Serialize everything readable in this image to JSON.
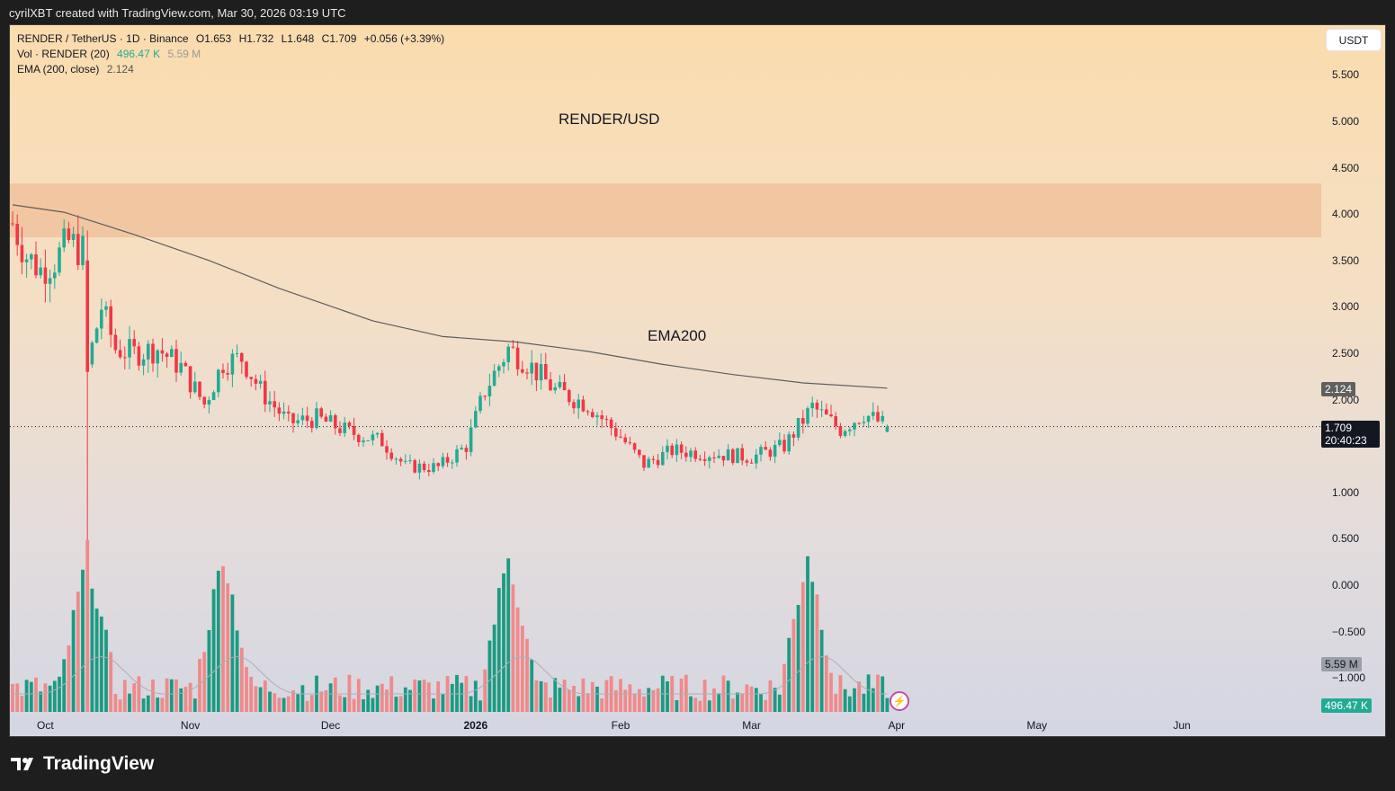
{
  "header": {
    "credit": "cyrilXBT created with TradingView.com, Mar 30, 2026 03:19 UTC"
  },
  "legend": {
    "symbol": "RENDER / TetherUS · 1D · Binance",
    "open": "O1.653",
    "high": "H1.732",
    "low": "L1.648",
    "close": "C1.709",
    "change": "+0.056 (+3.39%)",
    "vol_label": "Vol · RENDER (20)",
    "vol_value": "496.47 K",
    "vol_ma": "5.59 M",
    "ema_label": "EMA (200, close)",
    "ema_value": "2.124"
  },
  "annotations": {
    "pair": "RENDER/USD",
    "ema": "EMA200"
  },
  "currency": "USDT",
  "price_axis": [
    "5.500",
    "5.000",
    "4.500",
    "4.000",
    "3.500",
    "3.000",
    "2.500",
    "2.000",
    "1.000",
    "0.500",
    "0.000",
    "−0.500",
    "−1.000"
  ],
  "badges": {
    "ema": "2.124",
    "price": "1.709",
    "countdown": "20:40:23",
    "vol_ma": "5.59 M",
    "vol": "496.47 K"
  },
  "time_axis": [
    {
      "label": "Oct",
      "bold": false
    },
    {
      "label": "Nov",
      "bold": false
    },
    {
      "label": "Dec",
      "bold": false
    },
    {
      "label": "2026",
      "bold": true
    },
    {
      "label": "Feb",
      "bold": false
    },
    {
      "label": "Mar",
      "bold": false
    },
    {
      "label": "Apr",
      "bold": false
    },
    {
      "label": "May",
      "bold": false
    },
    {
      "label": "Jun",
      "bold": false
    }
  ],
  "footer": {
    "brand": "TradingView"
  },
  "colors": {
    "up": "#22ab94",
    "down": "#f23645",
    "up_vol": "#1a9b82",
    "down_vol": "#f08a8a",
    "zone": "#f0c29c",
    "ema": "#5d5d5d"
  },
  "chart_data": {
    "type": "candlestick",
    "symbol": "RENDER / TetherUS",
    "interval": "1D",
    "exchange": "Binance",
    "last": {
      "open": 1.653,
      "high": 1.732,
      "low": 1.648,
      "close": 1.709
    },
    "price_range": [
      -1.0,
      5.5
    ],
    "resistance_zone": [
      3.75,
      4.33
    ],
    "ema200": [
      {
        "date": "2025-09-24",
        "value": 4.1
      },
      {
        "date": "2025-10-05",
        "value": 4.02
      },
      {
        "date": "2025-10-20",
        "value": 3.78
      },
      {
        "date": "2025-11-05",
        "value": 3.5
      },
      {
        "date": "2025-11-20",
        "value": 3.2
      },
      {
        "date": "2025-12-10",
        "value": 2.85
      },
      {
        "date": "2025-12-25",
        "value": 2.68
      },
      {
        "date": "2026-01-10",
        "value": 2.62
      },
      {
        "date": "2026-01-25",
        "value": 2.52
      },
      {
        "date": "2026-02-10",
        "value": 2.38
      },
      {
        "date": "2026-02-25",
        "value": 2.27
      },
      {
        "date": "2026-03-12",
        "value": 2.18
      },
      {
        "date": "2026-03-30",
        "value": 2.124
      }
    ],
    "close_series": [
      {
        "date": "2025-09-24",
        "value": 3.9
      },
      {
        "date": "2025-09-27",
        "value": 3.55
      },
      {
        "date": "2025-09-30",
        "value": 3.4
      },
      {
        "date": "2025-10-03",
        "value": 3.5
      },
      {
        "date": "2025-10-06",
        "value": 3.7
      },
      {
        "date": "2025-10-09",
        "value": 3.6
      },
      {
        "date": "2025-10-10",
        "value": 2.35
      },
      {
        "date": "2025-10-13",
        "value": 3.0
      },
      {
        "date": "2025-10-16",
        "value": 2.55
      },
      {
        "date": "2025-10-20",
        "value": 2.5
      },
      {
        "date": "2025-10-25",
        "value": 2.55
      },
      {
        "date": "2025-10-30",
        "value": 2.35
      },
      {
        "date": "2025-11-04",
        "value": 1.95
      },
      {
        "date": "2025-11-08",
        "value": 2.4
      },
      {
        "date": "2025-11-12",
        "value": 2.45
      },
      {
        "date": "2025-11-16",
        "value": 2.1
      },
      {
        "date": "2025-11-22",
        "value": 1.75
      },
      {
        "date": "2025-11-28",
        "value": 1.8
      },
      {
        "date": "2025-12-05",
        "value": 1.65
      },
      {
        "date": "2025-12-12",
        "value": 1.55
      },
      {
        "date": "2025-12-17",
        "value": 1.28
      },
      {
        "date": "2025-12-24",
        "value": 1.27
      },
      {
        "date": "2025-12-30",
        "value": 1.5
      },
      {
        "date": "2026-01-03",
        "value": 2.1
      },
      {
        "date": "2026-01-08",
        "value": 2.55
      },
      {
        "date": "2026-01-12",
        "value": 2.4
      },
      {
        "date": "2026-01-18",
        "value": 2.1
      },
      {
        "date": "2026-01-25",
        "value": 1.95
      },
      {
        "date": "2026-02-01",
        "value": 1.6
      },
      {
        "date": "2026-02-06",
        "value": 1.3
      },
      {
        "date": "2026-02-12",
        "value": 1.45
      },
      {
        "date": "2026-02-20",
        "value": 1.42
      },
      {
        "date": "2026-03-01",
        "value": 1.38
      },
      {
        "date": "2026-03-08",
        "value": 1.5
      },
      {
        "date": "2026-03-14",
        "value": 1.92
      },
      {
        "date": "2026-03-20",
        "value": 1.68
      },
      {
        "date": "2026-03-25",
        "value": 1.85
      },
      {
        "date": "2026-03-30",
        "value": 1.709
      }
    ],
    "volume_spikes": [
      {
        "date": "2025-10-10",
        "level": "high"
      },
      {
        "date": "2025-11-08",
        "level": "high"
      },
      {
        "date": "2026-01-08",
        "level": "high"
      },
      {
        "date": "2026-03-13",
        "level": "high"
      }
    ]
  }
}
